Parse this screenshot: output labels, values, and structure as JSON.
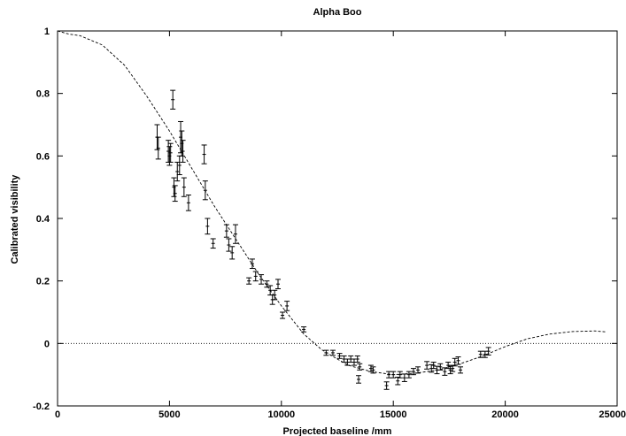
{
  "chart_data": {
    "type": "scatter",
    "title": "Alpha Boo",
    "xlabel": "Projected baseline /mm",
    "ylabel": "Calibrated visibility",
    "xlim": [
      0,
      25000
    ],
    "ylim": [
      -0.2,
      1
    ],
    "xticks": [
      "0",
      "5000",
      "10000",
      "15000",
      "20000",
      "25000"
    ],
    "yticks": [
      "-0.2",
      "0",
      "0.2",
      "0.4",
      "0.6",
      "0.8",
      "1"
    ],
    "xtick_values": [
      0,
      5000,
      10000,
      15000,
      20000,
      25000
    ],
    "ytick_values": [
      -0.2,
      0,
      0.2,
      0.4,
      0.6,
      0.8,
      1
    ],
    "grid": false,
    "legend": "none",
    "model_curve": {
      "style": "dashed",
      "x": [
        0,
        500,
        1000,
        2000,
        3000,
        4000,
        5000,
        6000,
        7000,
        8000,
        9000,
        10000,
        11000,
        11800,
        12500,
        13000,
        14000,
        15000,
        16000,
        17000,
        18000,
        19000,
        20000,
        21000,
        22000,
        23000,
        24000,
        24500
      ],
      "y": [
        1.0,
        0.99,
        0.985,
        0.955,
        0.89,
        0.79,
        0.68,
        0.56,
        0.44,
        0.33,
        0.22,
        0.12,
        0.03,
        -0.02,
        -0.05,
        -0.07,
        -0.09,
        -0.1,
        -0.095,
        -0.085,
        -0.065,
        -0.04,
        -0.01,
        0.015,
        0.03,
        0.038,
        0.04,
        0.037
      ]
    },
    "zero_line": {
      "style": "dotted",
      "y": 0
    },
    "series": [
      {
        "points": [
          {
            "x": 4450,
            "y": 0.66,
            "err": 0.04
          },
          {
            "x": 4500,
            "y": 0.625,
            "err": 0.035
          },
          {
            "x": 4950,
            "y": 0.615,
            "err": 0.035
          },
          {
            "x": 5000,
            "y": 0.6,
            "err": 0.03
          },
          {
            "x": 5050,
            "y": 0.61,
            "err": 0.03
          },
          {
            "x": 5150,
            "y": 0.78,
            "err": 0.03
          },
          {
            "x": 5200,
            "y": 0.5,
            "err": 0.03
          },
          {
            "x": 5250,
            "y": 0.48,
            "err": 0.025
          },
          {
            "x": 5350,
            "y": 0.55,
            "err": 0.03
          },
          {
            "x": 5450,
            "y": 0.57,
            "err": 0.03
          },
          {
            "x": 5500,
            "y": 0.66,
            "err": 0.05
          },
          {
            "x": 5550,
            "y": 0.64,
            "err": 0.04
          },
          {
            "x": 5600,
            "y": 0.615,
            "err": 0.035
          },
          {
            "x": 5650,
            "y": 0.5,
            "err": 0.03
          },
          {
            "x": 5850,
            "y": 0.45,
            "err": 0.025
          },
          {
            "x": 6550,
            "y": 0.605,
            "err": 0.03
          },
          {
            "x": 6600,
            "y": 0.49,
            "err": 0.03
          },
          {
            "x": 6700,
            "y": 0.375,
            "err": 0.025
          },
          {
            "x": 6950,
            "y": 0.32,
            "err": 0.015
          },
          {
            "x": 7550,
            "y": 0.36,
            "err": 0.02
          },
          {
            "x": 7650,
            "y": 0.315,
            "err": 0.02
          },
          {
            "x": 7800,
            "y": 0.29,
            "err": 0.02
          },
          {
            "x": 7950,
            "y": 0.35,
            "err": 0.03
          },
          {
            "x": 8550,
            "y": 0.2,
            "err": 0.01
          },
          {
            "x": 8700,
            "y": 0.255,
            "err": 0.015
          },
          {
            "x": 8850,
            "y": 0.215,
            "err": 0.015
          },
          {
            "x": 9100,
            "y": 0.205,
            "err": 0.015
          },
          {
            "x": 9350,
            "y": 0.19,
            "err": 0.01
          },
          {
            "x": 9500,
            "y": 0.17,
            "err": 0.015
          },
          {
            "x": 9600,
            "y": 0.14,
            "err": 0.015
          },
          {
            "x": 9700,
            "y": 0.155,
            "err": 0.015
          },
          {
            "x": 9850,
            "y": 0.19,
            "err": 0.015
          },
          {
            "x": 10050,
            "y": 0.09,
            "err": 0.01
          },
          {
            "x": 10250,
            "y": 0.12,
            "err": 0.015
          },
          {
            "x": 11000,
            "y": 0.045,
            "err": 0.008
          },
          {
            "x": 12000,
            "y": -0.03,
            "err": 0.008
          },
          {
            "x": 12300,
            "y": -0.03,
            "err": 0.008
          },
          {
            "x": 12600,
            "y": -0.04,
            "err": 0.008
          },
          {
            "x": 12800,
            "y": -0.05,
            "err": 0.01
          },
          {
            "x": 12950,
            "y": -0.06,
            "err": 0.01
          },
          {
            "x": 13100,
            "y": -0.05,
            "err": 0.01
          },
          {
            "x": 13250,
            "y": -0.06,
            "err": 0.01
          },
          {
            "x": 13400,
            "y": -0.05,
            "err": 0.01
          },
          {
            "x": 13450,
            "y": -0.115,
            "err": 0.012
          },
          {
            "x": 13500,
            "y": -0.075,
            "err": 0.01
          },
          {
            "x": 14000,
            "y": -0.08,
            "err": 0.01
          },
          {
            "x": 14100,
            "y": -0.085,
            "err": 0.01
          },
          {
            "x": 14700,
            "y": -0.135,
            "err": 0.012
          },
          {
            "x": 14800,
            "y": -0.1,
            "err": 0.01
          },
          {
            "x": 15000,
            "y": -0.1,
            "err": 0.01
          },
          {
            "x": 15200,
            "y": -0.12,
            "err": 0.012
          },
          {
            "x": 15300,
            "y": -0.1,
            "err": 0.01
          },
          {
            "x": 15500,
            "y": -0.11,
            "err": 0.012
          },
          {
            "x": 15700,
            "y": -0.1,
            "err": 0.01
          },
          {
            "x": 15900,
            "y": -0.09,
            "err": 0.01
          },
          {
            "x": 16100,
            "y": -0.085,
            "err": 0.01
          },
          {
            "x": 16500,
            "y": -0.07,
            "err": 0.012
          },
          {
            "x": 16700,
            "y": -0.08,
            "err": 0.012
          },
          {
            "x": 16800,
            "y": -0.07,
            "err": 0.01
          },
          {
            "x": 16950,
            "y": -0.085,
            "err": 0.012
          },
          {
            "x": 17100,
            "y": -0.075,
            "err": 0.01
          },
          {
            "x": 17300,
            "y": -0.09,
            "err": 0.012
          },
          {
            "x": 17450,
            "y": -0.07,
            "err": 0.01
          },
          {
            "x": 17550,
            "y": -0.085,
            "err": 0.012
          },
          {
            "x": 17650,
            "y": -0.08,
            "err": 0.01
          },
          {
            "x": 17750,
            "y": -0.06,
            "err": 0.012
          },
          {
            "x": 17900,
            "y": -0.055,
            "err": 0.012
          },
          {
            "x": 18000,
            "y": -0.085,
            "err": 0.01
          },
          {
            "x": 18900,
            "y": -0.035,
            "err": 0.01
          },
          {
            "x": 19100,
            "y": -0.035,
            "err": 0.01
          },
          {
            "x": 19250,
            "y": -0.025,
            "err": 0.012
          }
        ]
      }
    ]
  }
}
